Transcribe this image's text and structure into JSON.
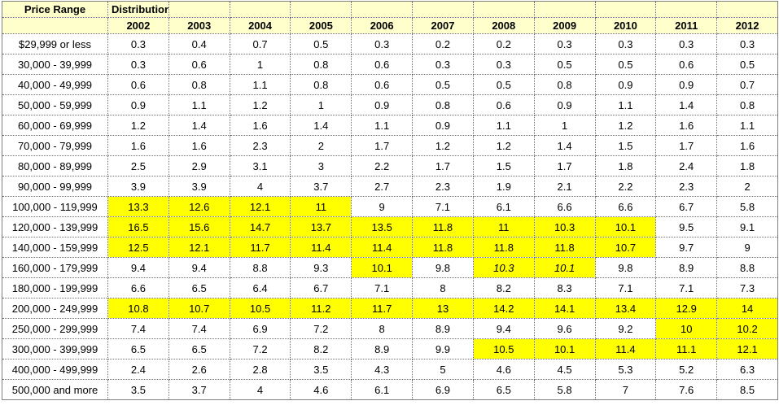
{
  "colors": {
    "header_bg": "#FFFFCC",
    "highlight": "#FFFF00",
    "grid": "#6e6e6e",
    "outer_border": "#7f7f7f",
    "text": "#000000"
  },
  "chart_data": {
    "type": "table",
    "corner_header": "Price Range",
    "group_header": "Distribution",
    "columns": [
      "2002",
      "2003",
      "2004",
      "2005",
      "2006",
      "2007",
      "2008",
      "2009",
      "2010",
      "2011",
      "2012"
    ],
    "row_labels": [
      "$29,999 or less",
      "30,000 - 39,999",
      "40,000 - 49,999",
      "50,000 - 59,999",
      "60,000 - 69,999",
      "70,000 - 79,999",
      "80,000 - 89,999",
      "90,000 - 99,999",
      "100,000 - 119,999",
      "120,000 - 139,999",
      "140,000 - 159,999",
      "160,000 - 179,999",
      "180,000 - 199,999",
      "200,000 - 249,999",
      "250,000 - 299,999",
      "300,000 - 399,999",
      "400,000 - 499,999",
      "500,000 and more"
    ],
    "values": [
      [
        0.3,
        0.4,
        0.7,
        0.5,
        0.3,
        0.2,
        0.2,
        0.3,
        0.3,
        0.3,
        0.3
      ],
      [
        0.3,
        0.6,
        1,
        0.8,
        0.6,
        0.3,
        0.3,
        0.5,
        0.5,
        0.6,
        0.5
      ],
      [
        0.6,
        0.8,
        1.1,
        0.8,
        0.6,
        0.5,
        0.5,
        0.8,
        0.9,
        0.9,
        0.7
      ],
      [
        0.9,
        1.1,
        1.2,
        1,
        0.9,
        0.8,
        0.6,
        0.9,
        1.1,
        1.4,
        0.8
      ],
      [
        1.2,
        1.4,
        1.6,
        1.4,
        1.1,
        0.9,
        1.1,
        1,
        1.2,
        1.6,
        1.1
      ],
      [
        1.6,
        1.6,
        2.3,
        2,
        1.7,
        1.2,
        1.2,
        1.4,
        1.5,
        1.7,
        1.6
      ],
      [
        2.5,
        2.9,
        3.1,
        3,
        2.2,
        1.7,
        1.5,
        1.7,
        1.8,
        2.4,
        1.8
      ],
      [
        3.9,
        3.9,
        4,
        3.7,
        2.7,
        2.3,
        1.9,
        2.1,
        2.2,
        2.3,
        2
      ],
      [
        13.3,
        12.6,
        12.1,
        11,
        9,
        7.1,
        6.1,
        6.6,
        6.6,
        6.7,
        5.8
      ],
      [
        16.5,
        15.6,
        14.7,
        13.7,
        13.5,
        11.8,
        11,
        10.3,
        10.1,
        9.5,
        9.1
      ],
      [
        12.5,
        12.1,
        11.7,
        11.4,
        11.4,
        11.8,
        11.8,
        11.8,
        10.7,
        9.7,
        9
      ],
      [
        9.4,
        9.4,
        8.8,
        9.3,
        10.1,
        9.8,
        10.3,
        10.1,
        9.8,
        8.9,
        8.8
      ],
      [
        6.6,
        6.5,
        6.4,
        6.7,
        7.1,
        8,
        8.2,
        8.3,
        7.1,
        7.1,
        7.3
      ],
      [
        10.8,
        10.7,
        10.5,
        11.2,
        11.7,
        13,
        14.2,
        14.1,
        13.4,
        12.9,
        14
      ],
      [
        7.4,
        7.4,
        6.9,
        7.2,
        8,
        8.9,
        9.4,
        9.6,
        9.2,
        10,
        10.2
      ],
      [
        6.5,
        6.5,
        7.2,
        8.2,
        8.9,
        9.9,
        10.5,
        10.1,
        11.4,
        11.1,
        12.1
      ],
      [
        2.4,
        2.6,
        2.8,
        3.5,
        4.3,
        5,
        4.6,
        4.5,
        5.3,
        5.2,
        6.3
      ],
      [
        3.5,
        3.7,
        4,
        4.6,
        6.1,
        6.9,
        6.5,
        5.8,
        7,
        7.6,
        8.5
      ]
    ],
    "highlight_mask": [
      [
        0,
        0,
        0,
        0,
        0,
        0,
        0,
        0,
        0,
        0,
        0
      ],
      [
        0,
        0,
        0,
        0,
        0,
        0,
        0,
        0,
        0,
        0,
        0
      ],
      [
        0,
        0,
        0,
        0,
        0,
        0,
        0,
        0,
        0,
        0,
        0
      ],
      [
        0,
        0,
        0,
        0,
        0,
        0,
        0,
        0,
        0,
        0,
        0
      ],
      [
        0,
        0,
        0,
        0,
        0,
        0,
        0,
        0,
        0,
        0,
        0
      ],
      [
        0,
        0,
        0,
        0,
        0,
        0,
        0,
        0,
        0,
        0,
        0
      ],
      [
        0,
        0,
        0,
        0,
        0,
        0,
        0,
        0,
        0,
        0,
        0
      ],
      [
        0,
        0,
        0,
        0,
        0,
        0,
        0,
        0,
        0,
        0,
        0
      ],
      [
        1,
        1,
        1,
        1,
        0,
        0,
        0,
        0,
        0,
        0,
        0
      ],
      [
        1,
        1,
        1,
        1,
        1,
        1,
        1,
        1,
        1,
        0,
        0
      ],
      [
        1,
        1,
        1,
        1,
        1,
        1,
        1,
        1,
        1,
        0,
        0
      ],
      [
        0,
        0,
        0,
        0,
        1,
        0,
        1,
        1,
        0,
        0,
        0
      ],
      [
        0,
        0,
        0,
        0,
        0,
        0,
        0,
        0,
        0,
        0,
        0
      ],
      [
        1,
        1,
        1,
        1,
        1,
        1,
        1,
        1,
        1,
        1,
        1
      ],
      [
        0,
        0,
        0,
        0,
        0,
        0,
        0,
        0,
        0,
        1,
        1
      ],
      [
        0,
        0,
        0,
        0,
        0,
        0,
        1,
        1,
        1,
        1,
        1
      ],
      [
        0,
        0,
        0,
        0,
        0,
        0,
        0,
        0,
        0,
        0,
        0
      ],
      [
        0,
        0,
        0,
        0,
        0,
        0,
        0,
        0,
        0,
        0,
        0
      ]
    ],
    "italic_cells": [
      [
        11,
        6
      ],
      [
        11,
        7
      ]
    ]
  }
}
